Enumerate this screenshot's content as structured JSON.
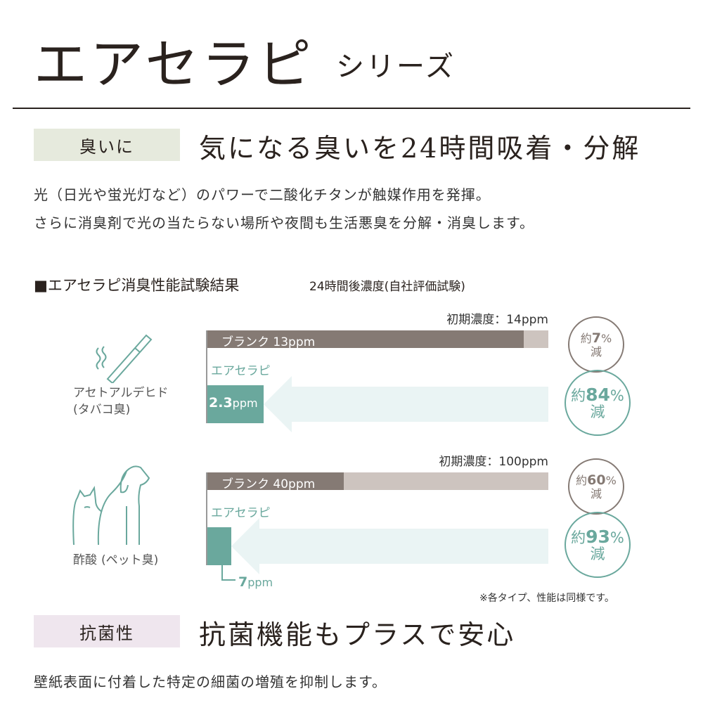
{
  "header": {
    "title": "エアセラピ",
    "subtitle": "シリーズ"
  },
  "section1": {
    "tag": "臭いに",
    "heading": "気になる臭いを24時間吸着・分解",
    "lines": [
      "光（日光や蛍光灯など）のパワーで二酸化チタンが触媒作用を発揮。",
      "さらに消臭剤で光の当たらない場所や夜間も生活悪臭を分解・消臭します。"
    ]
  },
  "test": {
    "title": "■エアセラピ消臭性能試験結果",
    "note": "24時間後濃度(自社評価試験)"
  },
  "colors": {
    "blank": "#857a74",
    "initial": "#cdc4bf",
    "product": "#6aa89d",
    "arrow": "#eaf4f4",
    "tag1": "#e6eadd",
    "tag2": "#efe6ee"
  },
  "chart_data": [
    {
      "type": "bar",
      "substance": "アセトアルデヒド",
      "odor": "(タバコ臭)",
      "icon": "cigarette-icon",
      "unit": "ppm",
      "initial_label": "初期濃度：14ppm",
      "initial": 14,
      "blank_label": "ブランク 13ppm",
      "blank": 13,
      "product_name": "エアセラピ",
      "product_value_num": "2.3",
      "product_value_unit": "ppm",
      "product": 2.3,
      "blank_reduction": {
        "pre": "約",
        "num": "7",
        "pct": "%",
        "post": "減"
      },
      "product_reduction": {
        "pre": "約",
        "num": "84",
        "pct": "%",
        "post": "減"
      }
    },
    {
      "type": "bar",
      "substance": "酢酸",
      "odor": "(ペット臭)",
      "icon": "dog-cat-icon",
      "unit": "ppm",
      "initial_label": "初期濃度：100ppm",
      "initial": 100,
      "blank_label": "ブランク 40ppm",
      "blank": 40,
      "product_name": "エアセラピ",
      "product_value_num": "7",
      "product_value_unit": "ppm",
      "product": 7,
      "blank_reduction": {
        "pre": "約",
        "num": "60",
        "pct": "%",
        "post": "減"
      },
      "product_reduction": {
        "pre": "約",
        "num": "93",
        "pct": "%",
        "post": "減"
      }
    }
  ],
  "footnote": "※各タイプ、性能は同様です。",
  "section2": {
    "tag": "抗菌性",
    "heading": "抗菌機能もプラスで安心",
    "line": "壁紙表面に付着した特定の細菌の増殖を抑制します。"
  }
}
